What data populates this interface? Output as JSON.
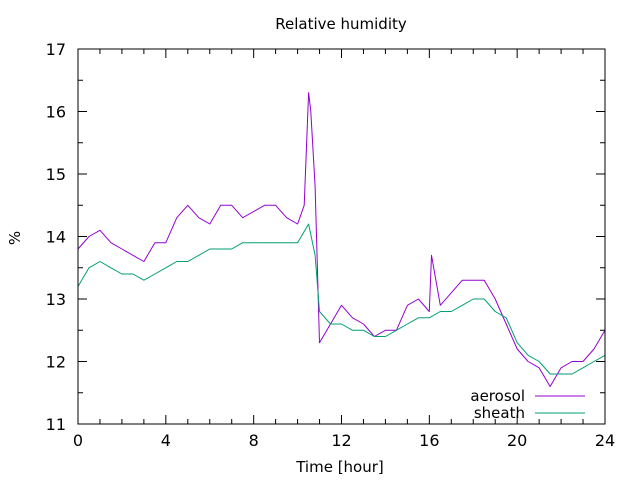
{
  "chart_data": {
    "type": "line",
    "title": "Relative humidity",
    "xlabel": "Time [hour]",
    "ylabel": "%",
    "xlim": [
      0,
      24
    ],
    "ylim": [
      11,
      17
    ],
    "xticks": [
      0,
      4,
      8,
      12,
      16,
      20,
      24
    ],
    "yticks": [
      11,
      12,
      13,
      14,
      15,
      16,
      17
    ],
    "x_minor_step": 1,
    "y_minor_step": 0.5,
    "grid": false,
    "legend_position": "bottom-right",
    "series": [
      {
        "name": "aerosol",
        "color": "#9400d3",
        "x": [
          0,
          0.5,
          1,
          1.5,
          2,
          2.5,
          3,
          3.5,
          4,
          4.5,
          5,
          5.5,
          6,
          6.5,
          7,
          7.5,
          8,
          8.5,
          9,
          9.5,
          10,
          10.3,
          10.5,
          10.6,
          10.8,
          11,
          11.5,
          12,
          12.5,
          13,
          13.5,
          14,
          14.5,
          15,
          15.5,
          16,
          16.1,
          16.5,
          17,
          17.5,
          18,
          18.5,
          19,
          19.5,
          20,
          20.5,
          21,
          21.5,
          22,
          22.5,
          23,
          23.5,
          24
        ],
        "y": [
          13.8,
          14.0,
          14.1,
          13.9,
          13.8,
          13.7,
          13.6,
          13.9,
          13.9,
          14.3,
          14.5,
          14.3,
          14.2,
          14.5,
          14.5,
          14.3,
          14.4,
          14.5,
          14.5,
          14.3,
          14.2,
          14.5,
          16.3,
          16.0,
          14.8,
          12.3,
          12.6,
          12.9,
          12.7,
          12.6,
          12.4,
          12.5,
          12.5,
          12.9,
          13.0,
          12.8,
          13.7,
          12.9,
          13.1,
          13.3,
          13.3,
          13.3,
          13.0,
          12.6,
          12.2,
          12.0,
          11.9,
          11.6,
          11.9,
          12.0,
          12.0,
          12.2,
          12.5
        ]
      },
      {
        "name": "sheath",
        "color": "#009e73",
        "x": [
          0,
          0.5,
          1,
          1.5,
          2,
          2.5,
          3,
          3.5,
          4,
          4.5,
          5,
          5.5,
          6,
          6.5,
          7,
          7.5,
          8,
          8.5,
          9,
          9.5,
          10,
          10.5,
          10.8,
          11,
          11.5,
          12,
          12.5,
          13,
          13.5,
          14,
          14.5,
          15,
          15.5,
          16,
          16.5,
          17,
          17.5,
          18,
          18.5,
          19,
          19.5,
          20,
          20.5,
          21,
          21.5,
          22,
          22.5,
          23,
          23.5,
          24
        ],
        "y": [
          13.2,
          13.5,
          13.6,
          13.5,
          13.4,
          13.4,
          13.3,
          13.4,
          13.5,
          13.6,
          13.6,
          13.7,
          13.8,
          13.8,
          13.8,
          13.9,
          13.9,
          13.9,
          13.9,
          13.9,
          13.9,
          14.2,
          13.7,
          12.8,
          12.6,
          12.6,
          12.5,
          12.5,
          12.4,
          12.4,
          12.5,
          12.6,
          12.7,
          12.7,
          12.8,
          12.8,
          12.9,
          13.0,
          13.0,
          12.8,
          12.7,
          12.3,
          12.1,
          12.0,
          11.8,
          11.8,
          11.8,
          11.9,
          12.0,
          12.1
        ]
      }
    ]
  }
}
